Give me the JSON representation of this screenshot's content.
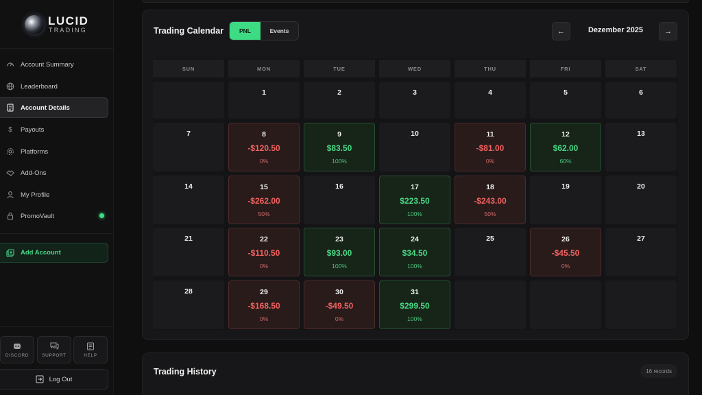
{
  "brand": {
    "name": "LUCID",
    "sub": "TRADING"
  },
  "sidebar": {
    "items": [
      {
        "label": "Account Summary",
        "icon": "gauge-icon"
      },
      {
        "label": "Leaderboard",
        "icon": "globe-icon"
      },
      {
        "label": "Account Details",
        "icon": "document-icon",
        "active": true
      },
      {
        "label": "Payouts",
        "icon": "dollar-icon"
      },
      {
        "label": "Platforms",
        "icon": "gear-icon"
      },
      {
        "label": "Add-Ons",
        "icon": "handshake-icon"
      },
      {
        "label": "My Profile",
        "icon": "user-icon"
      },
      {
        "label": "PromoVault",
        "icon": "lock-icon",
        "status_dot": "#3ddc84"
      }
    ],
    "add_account": "Add Account",
    "utilities": [
      {
        "label": "DISCORD",
        "icon": "discord-icon"
      },
      {
        "label": "SUPPORT",
        "icon": "chat-icon"
      },
      {
        "label": "HELP",
        "icon": "help-doc-icon"
      }
    ],
    "logout": "Log Out"
  },
  "calendar": {
    "title": "Trading Calendar",
    "toggle": {
      "pnl": "PNL",
      "events": "Events",
      "selected": "PNL"
    },
    "month": "Dezember 2025",
    "prev_icon": "arrow-left-icon",
    "next_icon": "arrow-right-icon",
    "weekdays": [
      "SUN",
      "MON",
      "TUE",
      "WED",
      "THU",
      "FRI",
      "SAT"
    ],
    "weeks": [
      [
        {
          "day": ""
        },
        {
          "day": "1"
        },
        {
          "day": "2"
        },
        {
          "day": "3"
        },
        {
          "day": "4"
        },
        {
          "day": "5"
        },
        {
          "day": "6"
        }
      ],
      [
        {
          "day": "7"
        },
        {
          "day": "8",
          "pnl": "-$120.50",
          "pct": "0%",
          "type": "neg"
        },
        {
          "day": "9",
          "pnl": "$83.50",
          "pct": "100%",
          "type": "pos"
        },
        {
          "day": "10"
        },
        {
          "day": "11",
          "pnl": "-$81.00",
          "pct": "0%",
          "type": "neg"
        },
        {
          "day": "12",
          "pnl": "$62.00",
          "pct": "60%",
          "type": "pos"
        },
        {
          "day": "13"
        }
      ],
      [
        {
          "day": "14"
        },
        {
          "day": "15",
          "pnl": "-$262.00",
          "pct": "50%",
          "type": "neg"
        },
        {
          "day": "16"
        },
        {
          "day": "17",
          "pnl": "$223.50",
          "pct": "100%",
          "type": "pos"
        },
        {
          "day": "18",
          "pnl": "-$243.00",
          "pct": "50%",
          "type": "neg"
        },
        {
          "day": "19"
        },
        {
          "day": "20"
        }
      ],
      [
        {
          "day": "21"
        },
        {
          "day": "22",
          "pnl": "-$110.50",
          "pct": "0%",
          "type": "neg"
        },
        {
          "day": "23",
          "pnl": "$93.00",
          "pct": "100%",
          "type": "pos"
        },
        {
          "day": "24",
          "pnl": "$34.50",
          "pct": "100%",
          "type": "pos"
        },
        {
          "day": "25"
        },
        {
          "day": "26",
          "pnl": "-$45.50",
          "pct": "0%",
          "type": "neg"
        },
        {
          "day": "27"
        }
      ],
      [
        {
          "day": "28"
        },
        {
          "day": "29",
          "pnl": "-$168.50",
          "pct": "0%",
          "type": "neg"
        },
        {
          "day": "30",
          "pnl": "-$49.50",
          "pct": "0%",
          "type": "neg"
        },
        {
          "day": "31",
          "pnl": "$299.50",
          "pct": "100%",
          "type": "pos"
        },
        {
          "day": ""
        },
        {
          "day": ""
        },
        {
          "day": ""
        }
      ]
    ],
    "colors": {
      "positive": "#49d884",
      "negative": "#f0625f",
      "accent": "#3ddc84"
    }
  },
  "history": {
    "title": "Trading History",
    "records": "16 records"
  }
}
